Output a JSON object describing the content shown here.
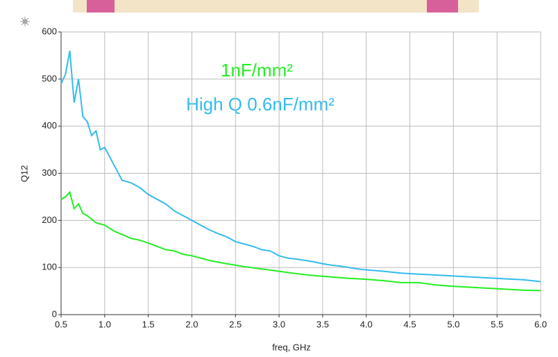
{
  "chart_data": {
    "type": "line",
    "xlabel": "freq, GHz",
    "ylabel": "Q12",
    "annotations": [
      {
        "text": "1nF/mm²",
        "color": "#22ee22"
      },
      {
        "text": "High Q 0.6nF/mm²",
        "color": "#33bbee"
      }
    ],
    "xlim": [
      0.5,
      6.0
    ],
    "xticks": [
      0.5,
      {
        "value": 1,
        "label": "1.0"
      },
      1.5,
      {
        "value": 2,
        "label": "2.0"
      },
      2.5,
      {
        "value": 3,
        "label": "3.0"
      },
      3.5,
      {
        "value": 4,
        "label": "4.0"
      },
      4.5,
      {
        "value": 5,
        "label": "5.0"
      },
      5.5,
      {
        "value": 6,
        "label": "6.0"
      }
    ],
    "ylim": [
      0,
      600
    ],
    "yticks": [
      0,
      100,
      200,
      300,
      400,
      500,
      600
    ],
    "grid": true,
    "series": [
      {
        "color": "#33bbee",
        "x": [
          0.5,
          0.55,
          0.6,
          0.65,
          0.7,
          0.75,
          0.8,
          0.85,
          0.9,
          0.95,
          1.0,
          1.1,
          1.2,
          1.3,
          1.4,
          1.5,
          1.6,
          1.7,
          1.8,
          1.9,
          2.0,
          2.1,
          2.2,
          2.3,
          2.4,
          2.5,
          2.6,
          2.7,
          2.8,
          2.9,
          3.0,
          3.1,
          3.2,
          3.3,
          3.4,
          3.5,
          3.6,
          3.7,
          3.8,
          3.9,
          4.0,
          4.2,
          4.4,
          4.6,
          4.8,
          5.0,
          5.2,
          5.4,
          5.6,
          5.8,
          6.0
        ],
        "values": [
          490,
          510,
          560,
          450,
          500,
          420,
          410,
          380,
          390,
          350,
          355,
          320,
          285,
          280,
          270,
          255,
          245,
          235,
          220,
          210,
          200,
          190,
          180,
          172,
          165,
          155,
          150,
          145,
          138,
          135,
          125,
          120,
          118,
          115,
          112,
          108,
          105,
          103,
          100,
          97,
          95,
          92,
          88,
          86,
          84,
          82,
          80,
          78,
          76,
          74,
          70
        ]
      },
      {
        "color": "#22ee22",
        "x": [
          0.5,
          0.55,
          0.6,
          0.65,
          0.7,
          0.75,
          0.8,
          0.9,
          1.0,
          1.1,
          1.2,
          1.3,
          1.4,
          1.5,
          1.6,
          1.7,
          1.8,
          1.9,
          2.0,
          2.2,
          2.4,
          2.6,
          2.8,
          3.0,
          3.2,
          3.4,
          3.6,
          3.8,
          4.0,
          4.2,
          4.4,
          4.6,
          4.8,
          5.0,
          5.2,
          5.4,
          5.6,
          5.8,
          6.0
        ],
        "values": [
          245,
          250,
          260,
          225,
          235,
          215,
          210,
          195,
          190,
          178,
          170,
          162,
          158,
          152,
          145,
          138,
          135,
          128,
          125,
          115,
          108,
          102,
          97,
          92,
          87,
          83,
          80,
          77,
          75,
          72,
          68,
          68,
          63,
          60,
          58,
          56,
          54,
          52,
          51
        ]
      }
    ]
  }
}
